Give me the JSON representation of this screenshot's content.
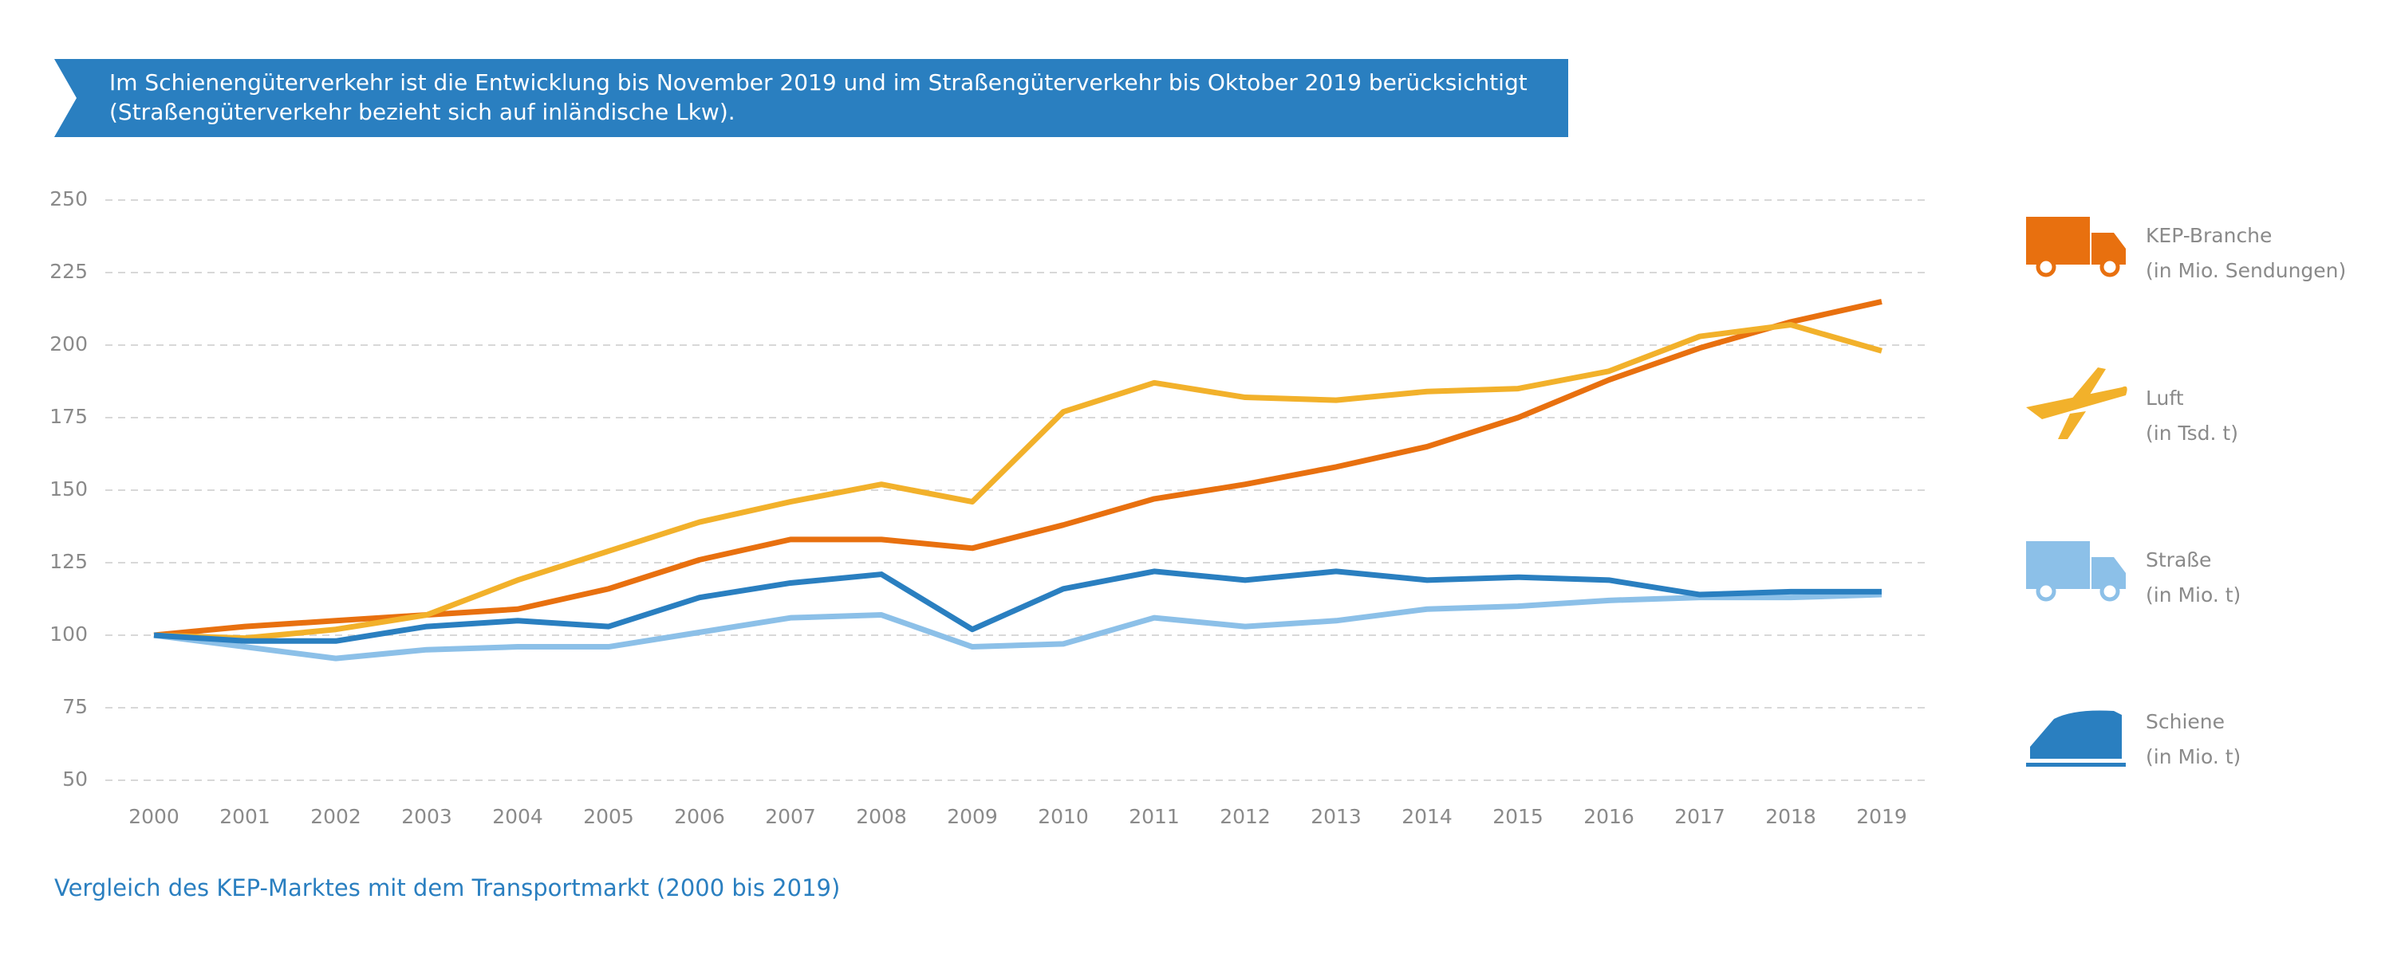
{
  "chart_data": {
    "type": "line",
    "note": "Im Schienengüterverkehr ist die Entwicklung bis November 2019 und im Straßengüterverkehr bis Oktober 2019 berücksichtigt",
    "note2": "(Straßengüterverkehr bezieht sich auf inländische Lkw).",
    "caption": "Vergleich des KEP-Marktes mit dem Transportmarkt (2000 bis 2019)",
    "categories": [
      "2000",
      "2001",
      "2002",
      "2003",
      "2004",
      "2005",
      "2006",
      "2007",
      "2008",
      "2009",
      "2010",
      "2011",
      "2012",
      "2013",
      "2014",
      "2015",
      "2016",
      "2017",
      "2018",
      "2019"
    ],
    "ylim": [
      50,
      250
    ],
    "yticks": [
      50,
      75,
      100,
      125,
      150,
      175,
      200,
      225,
      250
    ],
    "grid": true,
    "series": [
      {
        "name": "KEP-Branche",
        "unit": "(in Mio. Sendungen)",
        "color": "#e8700f",
        "values": [
          100,
          103,
          105,
          107,
          109,
          116,
          126,
          133,
          133,
          130,
          138,
          147,
          152,
          158,
          165,
          175,
          188,
          199,
          208,
          215
        ]
      },
      {
        "name": "Luft",
        "unit": "(in Tsd. t)",
        "color": "#f2b12b",
        "values": [
          100,
          99,
          102,
          107,
          119,
          129,
          139,
          146,
          152,
          146,
          177,
          187,
          182,
          181,
          184,
          185,
          191,
          203,
          207,
          198
        ]
      },
      {
        "name": "Straße",
        "unit": "(in Mio. t)",
        "color": "#8cc0e8",
        "values": [
          100,
          96,
          92,
          95,
          96,
          96,
          101,
          106,
          107,
          96,
          97,
          106,
          103,
          105,
          109,
          110,
          112,
          113,
          113,
          114
        ]
      },
      {
        "name": "Schiene",
        "unit": "(in Mio. t)",
        "color": "#2a7fc0",
        "values": [
          100,
          98,
          98,
          103,
          105,
          103,
          113,
          118,
          121,
          102,
          116,
          122,
          119,
          122,
          119,
          120,
          119,
          114,
          115,
          115
        ]
      }
    ]
  }
}
